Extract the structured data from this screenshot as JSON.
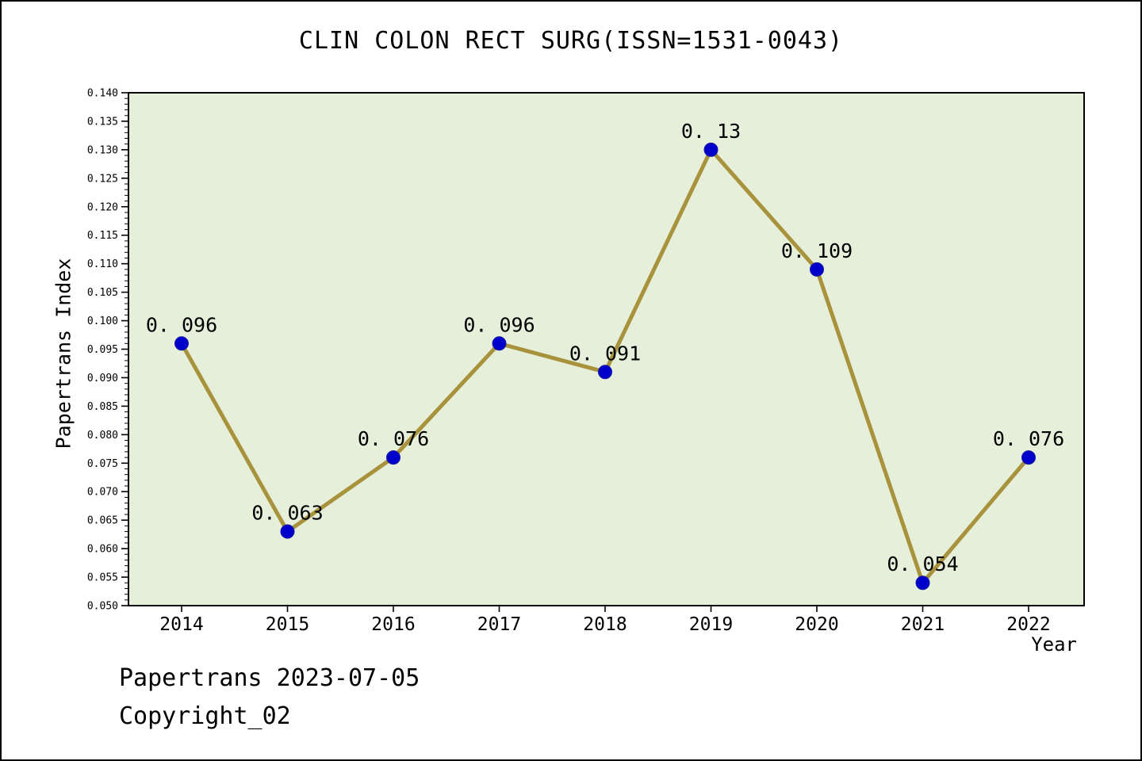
{
  "title": "CLIN COLON RECT SURG(ISSN=1531-0043)",
  "footer": {
    "line1": "Papertrans 2023-07-05",
    "line2": "Copyright_02"
  },
  "chart_data": {
    "type": "line",
    "title": "CLIN COLON RECT SURG(ISSN=1531-0043)",
    "x": [
      2014,
      2015,
      2016,
      2017,
      2018,
      2019,
      2020,
      2021,
      2022
    ],
    "values": [
      0.096,
      0.063,
      0.076,
      0.096,
      0.091,
      0.13,
      0.109,
      0.054,
      0.076
    ],
    "labels": [
      "0. 096",
      "0. 063",
      "0. 076",
      "0. 096",
      "0. 091",
      "0. 13",
      "0. 109",
      "0. 054",
      "0. 076"
    ],
    "xlabel": "Year",
    "ylabel": "Papertrans Index",
    "ylim": [
      0.05,
      0.14
    ],
    "ytick_step": 0.005,
    "ytick_minor_step": 0.001,
    "grid": false,
    "legend": null,
    "colors": {
      "line": "#a8923c",
      "marker": "#0000cd",
      "marker_edge": "#1a1aa0",
      "plot_bg": "#e5efd9",
      "axis": "#000000"
    }
  }
}
